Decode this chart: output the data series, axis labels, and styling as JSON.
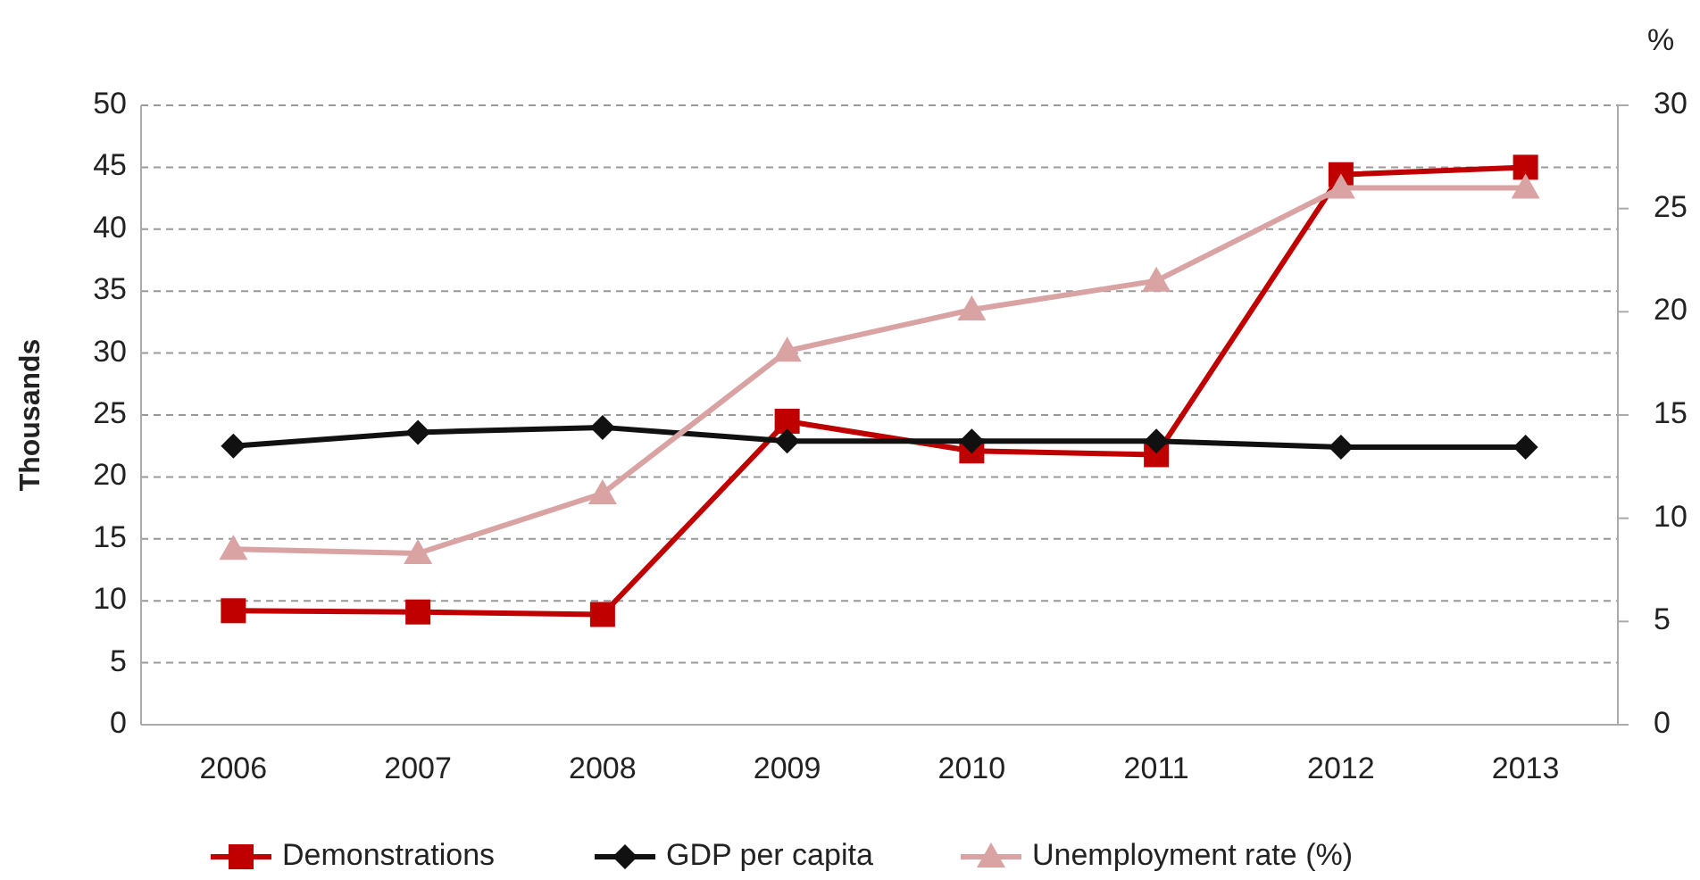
{
  "chart_data": {
    "type": "line",
    "ylabel": "Thousands",
    "y2label": "%",
    "categories": [
      "2006",
      "2007",
      "2008",
      "2009",
      "2010",
      "2011",
      "2012",
      "2013"
    ],
    "series": [
      {
        "name": "Demonstrations",
        "color": "#c00000",
        "marker": "square",
        "values": [
          9.2,
          9.1,
          8.9,
          24.5,
          22.1,
          21.8,
          44.4,
          45.0
        ]
      },
      {
        "name": "GDP per capita",
        "color": "#111111",
        "marker": "diamond",
        "values": [
          22.5,
          23.6,
          24.0,
          22.9,
          22.9,
          22.9,
          22.4,
          22.4
        ]
      },
      {
        "name": "Unemployment rate (%)",
        "color": "#d9a3a3",
        "marker": "triangle",
        "axis": "y2",
        "values": [
          8.5,
          8.3,
          11.2,
          18.1,
          20.1,
          21.5,
          26.0,
          26.0
        ]
      }
    ],
    "ylim": [
      0,
      50
    ],
    "yticks": [
      0,
      5,
      10,
      15,
      20,
      25,
      30,
      35,
      40,
      45,
      50
    ],
    "y2lim": [
      0,
      30
    ],
    "y2ticks": [
      0,
      5,
      10,
      15,
      20,
      25,
      30
    ],
    "grid": "y",
    "legend": "bottom",
    "line_style": "solid"
  }
}
